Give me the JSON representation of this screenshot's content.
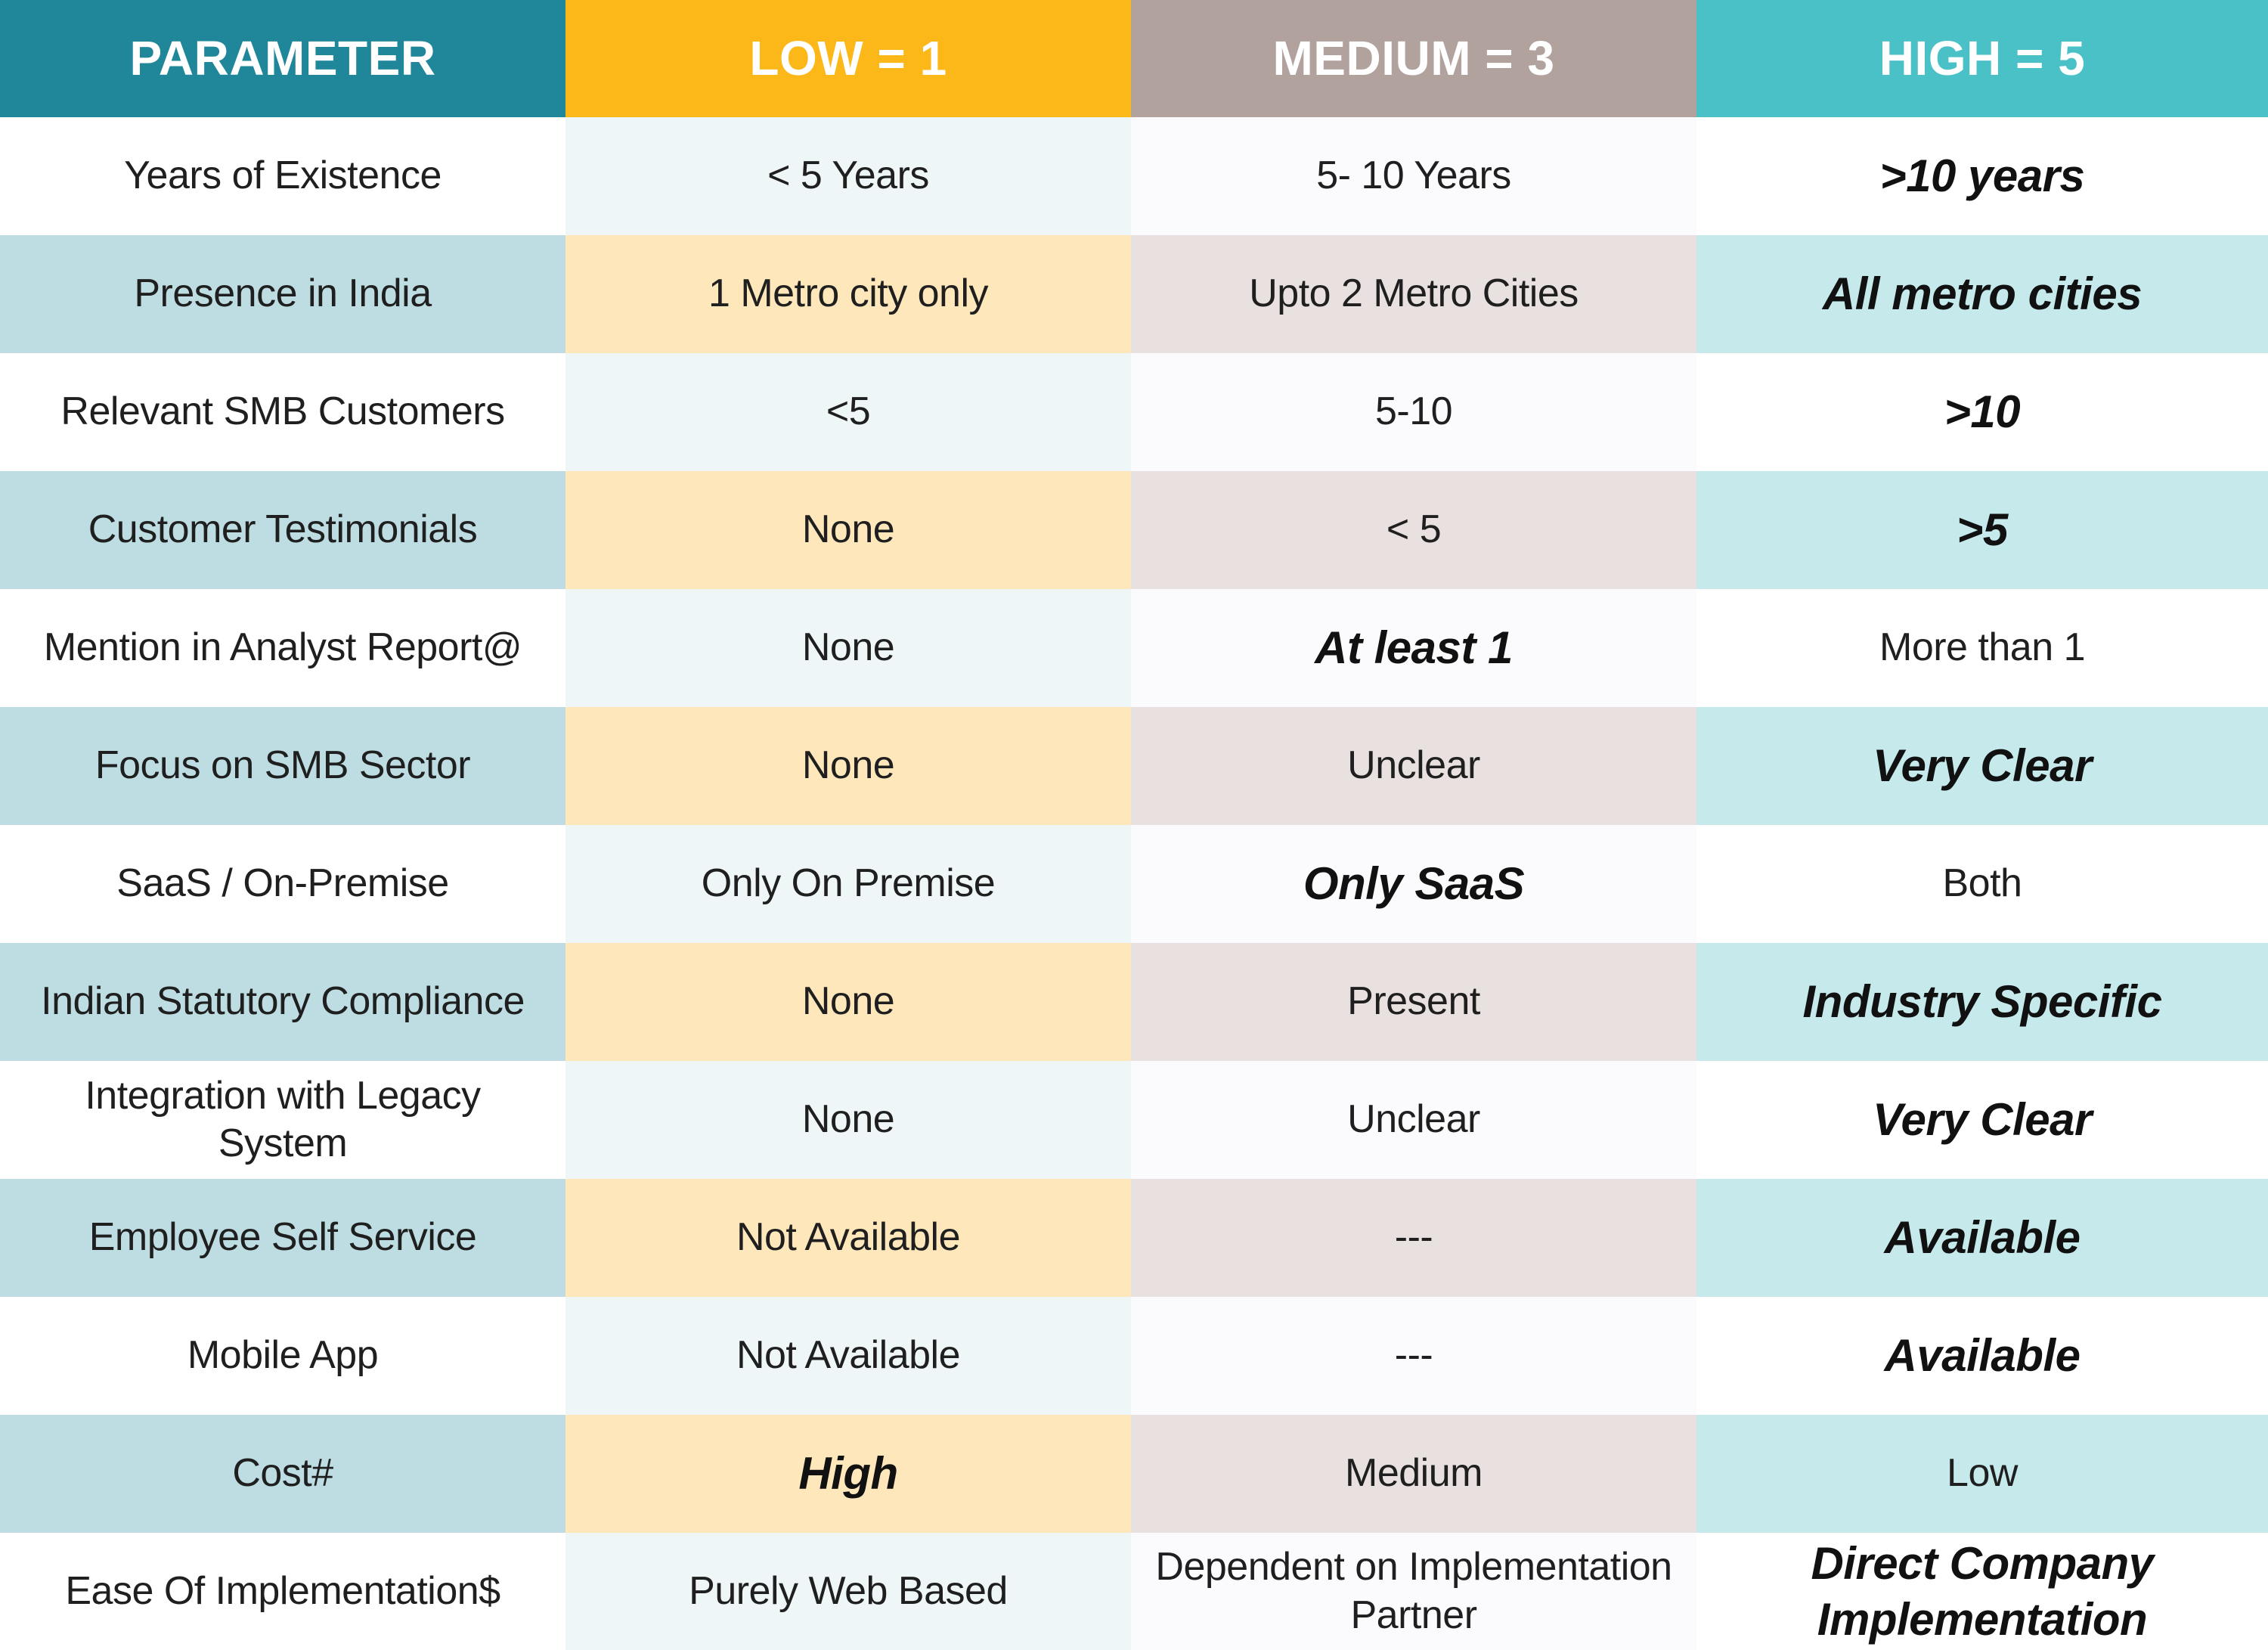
{
  "header": {
    "parameter": "PARAMETER",
    "low": "LOW = 1",
    "medium": "MEDIUM = 3",
    "high": "HIGH = 5"
  },
  "colors": {
    "header_parameter": "#20879a",
    "header_low": "#fcb718",
    "header_medium": "#b2a29e",
    "header_high": "#49c1c6"
  },
  "rows": [
    {
      "parameter": "Years of Existence",
      "low": "< 5 Years",
      "medium": "5- 10 Years",
      "high": ">10 years",
      "highlight": "high"
    },
    {
      "parameter": "Presence in India",
      "low": "1 Metro city only",
      "medium": "Upto 2 Metro Cities",
      "high": "All metro cities",
      "highlight": "high"
    },
    {
      "parameter": "Relevant SMB Customers",
      "low": "<5",
      "medium": "5-10",
      "high": ">10",
      "highlight": "high"
    },
    {
      "parameter": "Customer Testimonials",
      "low": "None",
      "medium": "< 5",
      "high": ">5",
      "highlight": "high"
    },
    {
      "parameter": "Mention in Analyst Report@",
      "low": "None",
      "medium": "At least 1",
      "high": "More than 1",
      "highlight": "medium"
    },
    {
      "parameter": "Focus on SMB Sector",
      "low": "None",
      "medium": "Unclear",
      "high": "Very Clear",
      "highlight": "high"
    },
    {
      "parameter": "SaaS / On-Premise",
      "low": "Only On Premise",
      "medium": "Only SaaS",
      "high": "Both",
      "highlight": "medium"
    },
    {
      "parameter": "Indian Statutory Compliance",
      "low": "None",
      "medium": "Present",
      "high": "Industry Specific",
      "highlight": "high"
    },
    {
      "parameter": "Integration with Legacy System",
      "low": "None",
      "medium": "Unclear",
      "high": "Very Clear",
      "highlight": "high"
    },
    {
      "parameter": "Employee Self Service",
      "low": "Not Available",
      "medium": "---",
      "high": "Available",
      "highlight": "high"
    },
    {
      "parameter": "Mobile App",
      "low": "Not Available",
      "medium": "---",
      "high": "Available",
      "highlight": "high"
    },
    {
      "parameter": "Cost#",
      "low": "High",
      "medium": "Medium",
      "high": "Low",
      "highlight": "low"
    },
    {
      "parameter": "Ease Of Implementation$",
      "low": "Purely Web Based",
      "medium": "Dependent on Implementation Partner",
      "high": "Direct Company Implementation",
      "highlight": "high"
    }
  ]
}
